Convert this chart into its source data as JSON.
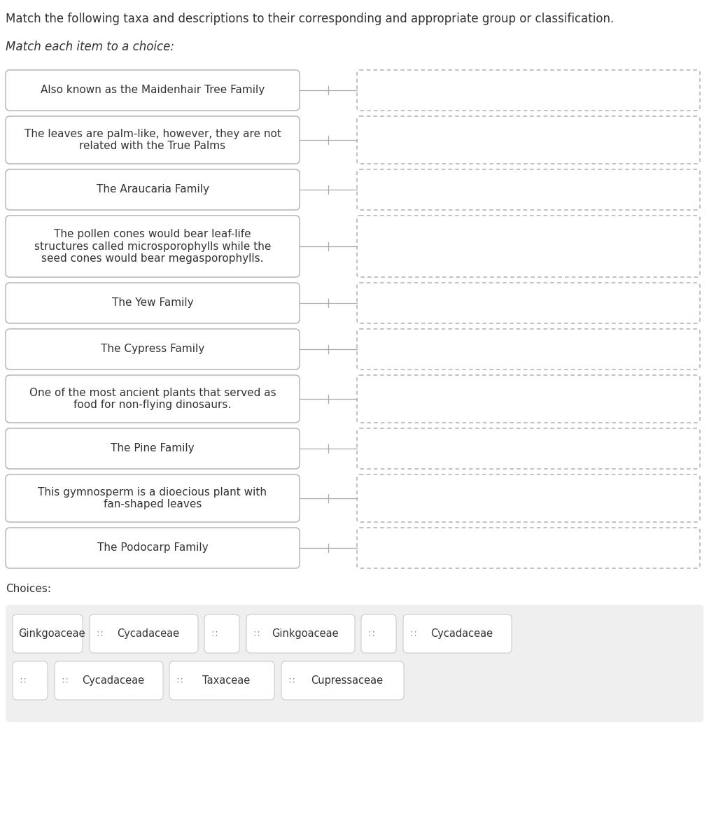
{
  "title": "Match the following taxa and descriptions to their corresponding and appropriate group or classification.",
  "subtitle": "Match each item to a choice:",
  "background_color": "#ffffff",
  "left_items": [
    "Also known as the Maidenhair Tree Family",
    "The leaves are palm-like, however, they are not\nrelated with the True Palms",
    "The Araucaria Family",
    "The pollen cones would bear leaf-life\nstructures called microsporophylls while the\nseed cones would bear megasporophylls.",
    "The Yew Family",
    "The Cypress Family",
    "One of the most ancient plants that served as\nfood for non-flying dinosaurs.",
    "The Pine Family",
    "This gymnosperm is a dioecious plant with\nfan-shaped leaves",
    "The Podocarp Family"
  ],
  "choices_label": "Choices:",
  "choices_row1": [
    {
      "text": "Ginkgoaceae"
    },
    {
      "text": "Cycadaceae"
    },
    {
      "text": ""
    },
    {
      "text": "Ginkgoaceae"
    },
    {
      "text": ""
    },
    {
      "text": "Cycadaceae"
    }
  ],
  "choices_row2": [
    {
      "text": ""
    },
    {
      "text": "Cycadaceae"
    },
    {
      "text": "Taxaceae"
    },
    {
      "text": "Cupressaceae"
    }
  ],
  "text_color": "#333333",
  "box_edge_color": "#b0b0b0",
  "dashed_edge_color": "#aaaaaa",
  "connector_color": "#aaaaaa",
  "choices_bg": "#efefef",
  "title_fontsize": 12,
  "subtitle_fontsize": 12,
  "item_fontsize": 11,
  "choices_fontsize": 11
}
